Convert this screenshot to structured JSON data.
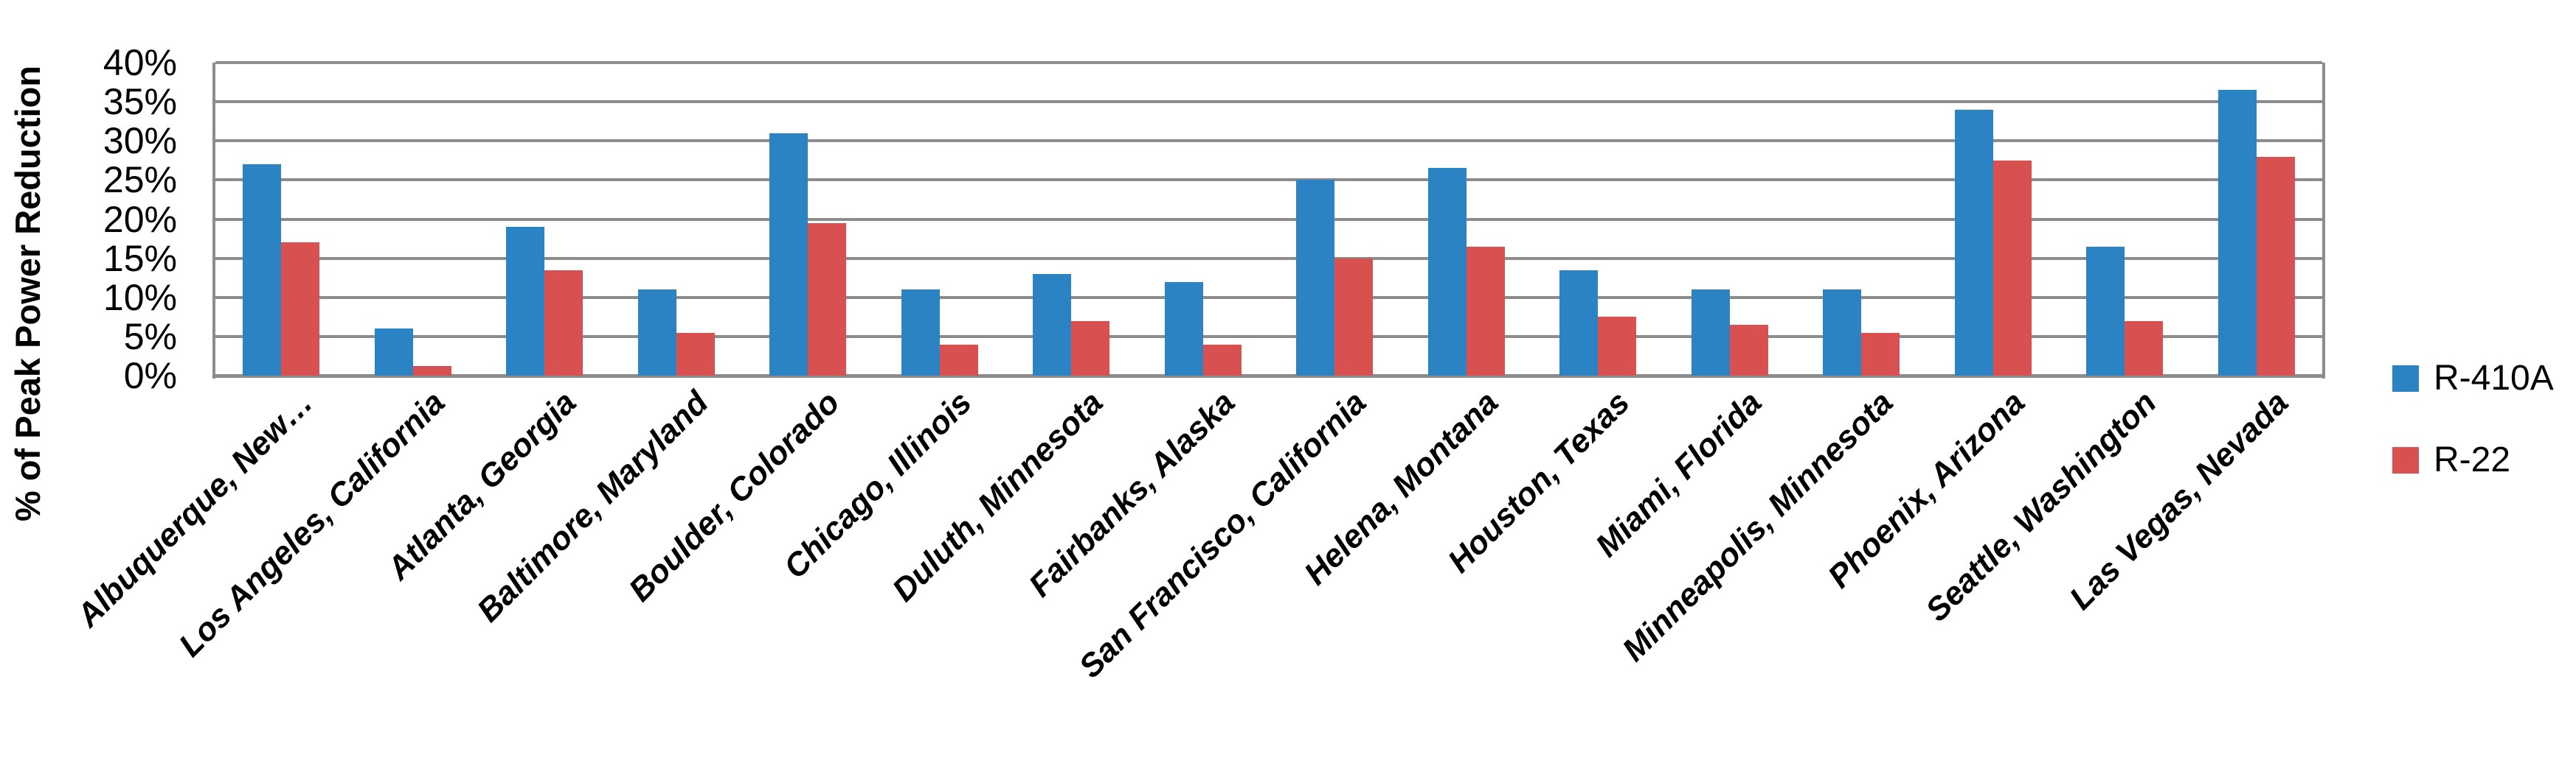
{
  "chart_data": {
    "type": "bar",
    "title": "",
    "xlabel": "",
    "ylabel": "% of Peak Power Reduction",
    "ylim": [
      0,
      40
    ],
    "ytick_step": 5,
    "grid": true,
    "legend_position": "right",
    "yticks": [
      "0%",
      "5%",
      "10%",
      "15%",
      "20%",
      "25%",
      "30%",
      "35%",
      "40%"
    ],
    "categories": [
      "Albuquerque, New…",
      "Los Angeles, California",
      "Atlanta, Georgia",
      "Baltimore, Maryland",
      "Boulder, Colorado",
      "Chicago, Illinois",
      "Duluth, Minnesota",
      "Fairbanks, Alaska",
      "San Francisco, California",
      "Helena, Montana",
      "Houston, Texas",
      "Miami, Florida",
      "Minneapolis, Minnesota",
      "Phoenix, Arizona",
      "Seattle, Washington",
      "Las Vegas, Nevada"
    ],
    "series": [
      {
        "name": "R-410A",
        "color": "#2B83C4",
        "values": [
          27,
          6,
          19,
          11,
          31,
          11,
          13,
          12,
          25,
          26.5,
          13.5,
          11,
          11,
          34,
          16.5,
          36.5
        ]
      },
      {
        "name": "R-22",
        "color": "#D95050",
        "values": [
          17,
          1.2,
          13.5,
          5.5,
          19.5,
          4,
          7,
          4,
          15,
          16.5,
          7.5,
          6.5,
          5.5,
          27.5,
          7,
          28
        ]
      }
    ]
  },
  "colors": {
    "gridline": "#8C8C8C",
    "text": "#000000",
    "background": "#FFFFFF"
  }
}
